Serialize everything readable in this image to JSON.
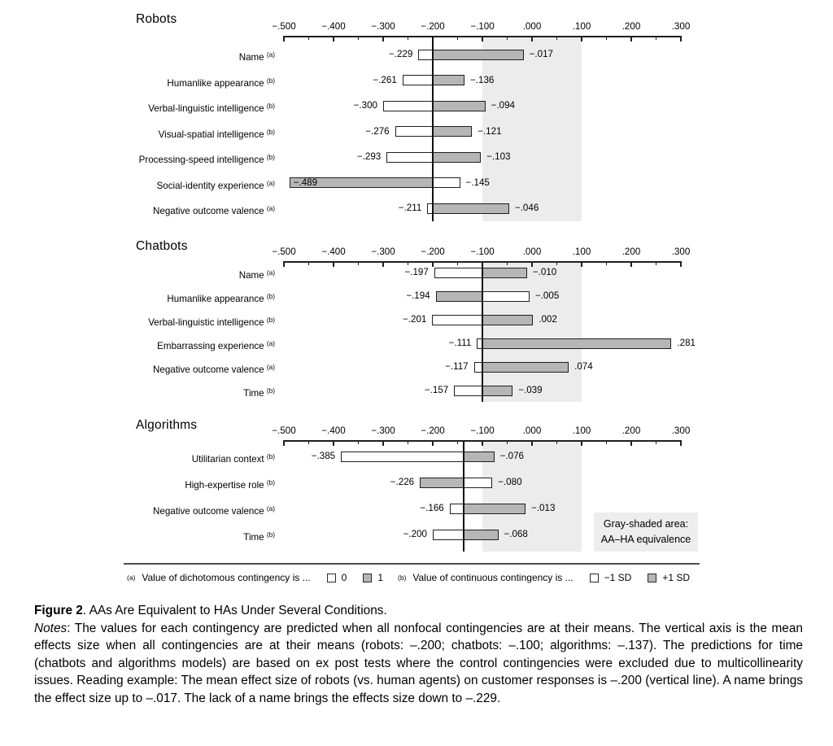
{
  "colors": {
    "bar_gray": "#b6b6b6",
    "bar_white": "#ffffff",
    "bar_border": "#1f1f1f",
    "band": "#ececec",
    "note_box_bg": "#ededed"
  },
  "chart_data": {
    "type": "bar",
    "orientation": "horizontal",
    "xlim": [
      -0.5,
      0.3
    ],
    "tick_step": 0.1,
    "minor_tick_step": 0.05,
    "tick_labels": [
      "−.500",
      "−.400",
      "−.300",
      "−.200",
      "−.100",
      ".000",
      ".100",
      ".200",
      ".300"
    ],
    "grid": false,
    "equivalence_band": {
      "from": -0.1,
      "to": 0.1,
      "meaning": "AA–HA equivalence"
    },
    "panels": [
      {
        "title": "Robots",
        "mean": -0.2,
        "rows": [
          {
            "label": "Name",
            "sup": "(a)",
            "white": -0.229,
            "gray": -0.017,
            "white_label": "−.229",
            "gray_label": "−.017"
          },
          {
            "label": "Humanlike appearance",
            "sup": "(b)",
            "white": -0.261,
            "gray": -0.136,
            "white_label": "−.261",
            "gray_label": "−.136"
          },
          {
            "label": "Verbal-linguistic intelligence",
            "sup": "(b)",
            "white": -0.3,
            "gray": -0.094,
            "white_label": "−.300",
            "gray_label": "−.094"
          },
          {
            "label": "Visual-spatial intelligence",
            "sup": "(b)",
            "white": -0.276,
            "gray": -0.121,
            "white_label": "−.276",
            "gray_label": "−.121"
          },
          {
            "label": "Processing-speed intelligence",
            "sup": "(b)",
            "white": -0.293,
            "gray": -0.103,
            "white_label": "−.293",
            "gray_label": "−.103"
          },
          {
            "label": "Social-identity experience",
            "sup": "(a)",
            "white": -0.145,
            "gray": -0.489,
            "white_label": "−.145",
            "gray_label": "−.489",
            "left_label_inside": true
          },
          {
            "label": "Negative outcome valence",
            "sup": "(a)",
            "white": -0.211,
            "gray": -0.046,
            "white_label": "−.211",
            "gray_label": "−.046"
          }
        ]
      },
      {
        "title": "Chatbots",
        "mean": -0.1,
        "rows": [
          {
            "label": "Name",
            "sup": "(a)",
            "white": -0.197,
            "gray": -0.01,
            "white_label": "−.197",
            "gray_label": "−.010"
          },
          {
            "label": "Humanlike appearance",
            "sup": "(b)",
            "white": -0.005,
            "gray": -0.194,
            "white_label": "−.005",
            "gray_label": "−.194"
          },
          {
            "label": "Verbal-linguistic intelligence",
            "sup": "(b)",
            "white": -0.201,
            "gray": 0.002,
            "white_label": "−.201",
            "gray_label": ".002"
          },
          {
            "label": "Embarrassing experience",
            "sup": "(a)",
            "white": -0.111,
            "gray": 0.281,
            "white_label": "−.111",
            "gray_label": ".281"
          },
          {
            "label": "Negative outcome valence",
            "sup": "(a)",
            "white": -0.117,
            "gray": 0.074,
            "white_label": "−.117",
            "gray_label": ".074"
          },
          {
            "label": "Time",
            "sup": "(b)",
            "white": -0.157,
            "gray": -0.039,
            "white_label": "−.157",
            "gray_label": "−.039"
          }
        ]
      },
      {
        "title": "Algorithms",
        "mean": -0.137,
        "rows": [
          {
            "label": "Utilitarian context",
            "sup": "(b)",
            "white": -0.385,
            "gray": -0.076,
            "white_label": "−.385",
            "gray_label": "−.076"
          },
          {
            "label": "High-expertise role",
            "sup": "(b)",
            "white": -0.08,
            "gray": -0.226,
            "white_label": "−.080",
            "gray_label": "−.226"
          },
          {
            "label": "Negative outcome valence",
            "sup": "(a)",
            "white": -0.166,
            "gray": -0.013,
            "white_label": "−.166",
            "gray_label": "−.013"
          },
          {
            "label": "Time",
            "sup": "(b)",
            "white": -0.2,
            "gray": -0.068,
            "white_label": "−.200",
            "gray_label": "−.068"
          }
        ]
      }
    ],
    "legend": {
      "groups": [
        {
          "sup": "(a)",
          "text": "Value of dichotomous contingency is ...",
          "items": [
            {
              "swatch": "white",
              "label": "0"
            },
            {
              "swatch": "gray",
              "label": "1"
            }
          ]
        },
        {
          "sup": "(b)",
          "text": "Value of continuous contingency is ...",
          "items": [
            {
              "swatch": "white",
              "label": "−1 SD"
            },
            {
              "swatch": "gray",
              "label": "+1 SD"
            }
          ]
        }
      ]
    }
  },
  "note_box": {
    "line1": "Gray-shaded area:",
    "line2": "AA–HA equivalence"
  },
  "caption": {
    "figure_label": "Figure 2",
    "figure_title": ". AAs Are Equivalent to HAs Under Several Conditions.",
    "notes_label": "Notes",
    "notes_body": ": The values for each contingency are predicted when all nonfocal contingencies are at their means. The vertical axis is the mean effects size when all contingencies are at their means (robots: –.200; chatbots: –.100; algorithms: –.137). The predictions for time (chatbots and algorithms models) are based on ex post tests where the control contingencies were excluded due to multicollinearity issues. Reading example: The mean effect size of robots (vs. human agents) on customer responses is –.200 (vertical line). A name brings the effect size up to –.017. The lack of a name brings the effects size down to –.229."
  }
}
